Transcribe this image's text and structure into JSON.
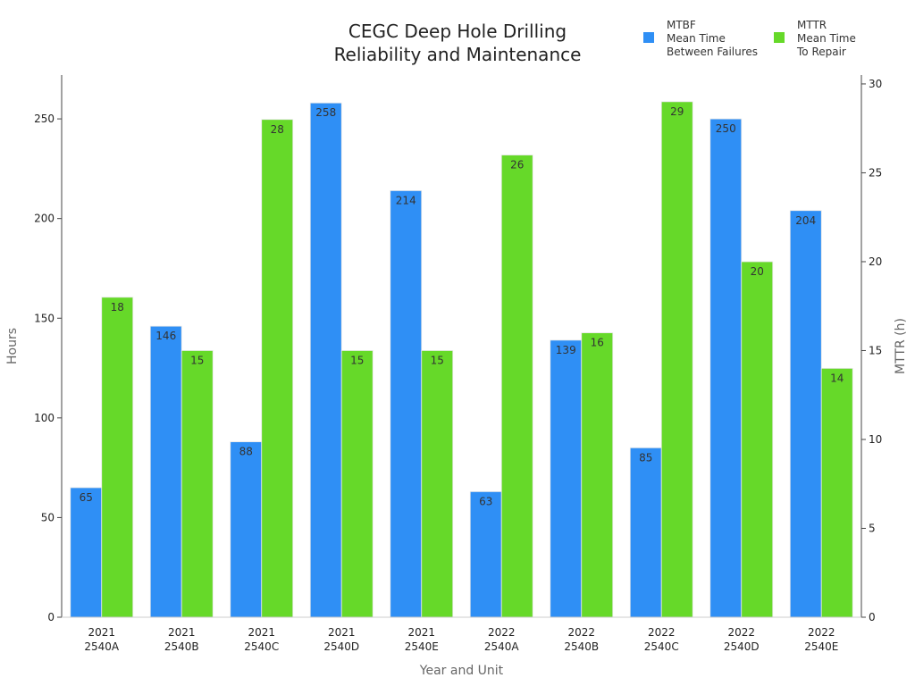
{
  "chart_data": {
    "type": "bar",
    "title_line1": "CEGC Deep Hole Drilling",
    "title_line2": "Reliability and Maintenance",
    "xlabel": "Year and Unit",
    "ylabel": "Hours",
    "y2label": "MTTR (h)",
    "categories": [
      {
        "year": "2021",
        "unit": "2540A"
      },
      {
        "year": "2021",
        "unit": "2540B"
      },
      {
        "year": "2021",
        "unit": "2540C"
      },
      {
        "year": "2021",
        "unit": "2540D"
      },
      {
        "year": "2021",
        "unit": "2540E"
      },
      {
        "year": "2022",
        "unit": "2540A"
      },
      {
        "year": "2022",
        "unit": "2540B"
      },
      {
        "year": "2022",
        "unit": "2540C"
      },
      {
        "year": "2022",
        "unit": "2540D"
      },
      {
        "year": "2022",
        "unit": "2540E"
      }
    ],
    "series": [
      {
        "name": "MTBF",
        "legend_lines": [
          "MTBF",
          "Mean Time",
          "Between Failures"
        ],
        "axis": "left",
        "color": "#2f8ff5",
        "values": [
          65,
          146,
          88,
          258,
          214,
          63,
          139,
          85,
          250,
          204
        ]
      },
      {
        "name": "MTTR",
        "legend_lines": [
          "MTTR",
          "Mean Time",
          "To Repair"
        ],
        "axis": "right",
        "color": "#66d929",
        "values": [
          18,
          15,
          28,
          15,
          15,
          26,
          16,
          29,
          20,
          14
        ]
      }
    ],
    "ylim": [
      0,
      272
    ],
    "y2lim": [
      0,
      30.5
    ],
    "yticks": [
      0,
      50,
      100,
      150,
      200,
      250
    ],
    "y2ticks": [
      0,
      5,
      10,
      15,
      20,
      25,
      30
    ],
    "legend_position": "top-right",
    "grid": false
  }
}
